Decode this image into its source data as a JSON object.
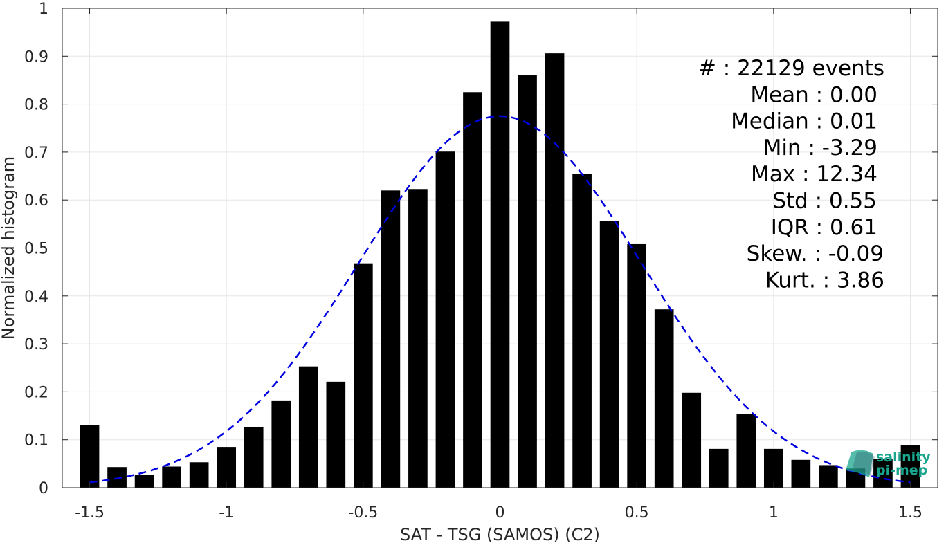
{
  "chart_data": {
    "type": "bar",
    "xlabel": "SAT - TSG (SAMOS) (C2)",
    "ylabel": "Normalized histogram",
    "xlim": [
      -1.6,
      1.6
    ],
    "ylim": [
      0,
      1
    ],
    "grid": true,
    "x_ticks": [
      -1.5,
      -1,
      -0.5,
      0,
      0.5,
      1,
      1.5
    ],
    "x_tick_labels": [
      "-1.5",
      "-1",
      "-0.5",
      "0",
      "0.5",
      "1",
      "1.5"
    ],
    "y_ticks": [
      0,
      0.1,
      0.2,
      0.3,
      0.4,
      0.5,
      0.6,
      0.7,
      0.8,
      0.9,
      1
    ],
    "y_tick_labels": [
      "0",
      "0.1",
      "0.2",
      "0.3",
      "0.4",
      "0.5",
      "0.6",
      "0.7",
      "0.8",
      "0.9",
      "1"
    ],
    "bin_width": 0.1,
    "x": [
      -1.5,
      -1.4,
      -1.3,
      -1.2,
      -1.1,
      -1.0,
      -0.9,
      -0.8,
      -0.7,
      -0.6,
      -0.5,
      -0.4,
      -0.3,
      -0.2,
      -0.1,
      0.0,
      0.1,
      0.2,
      0.3,
      0.4,
      0.5,
      0.6,
      0.7,
      0.8,
      0.9,
      1.0,
      1.1,
      1.2,
      1.3,
      1.4,
      1.5
    ],
    "values": [
      0.13,
      0.043,
      0.027,
      0.044,
      0.053,
      0.085,
      0.127,
      0.182,
      0.253,
      0.221,
      0.468,
      0.62,
      0.623,
      0.701,
      0.825,
      0.972,
      0.86,
      0.906,
      0.655,
      0.557,
      0.508,
      0.372,
      0.198,
      0.081,
      0.153,
      0.081,
      0.058,
      0.047,
      0.04,
      0.06,
      0.088
    ],
    "bar_color": "#000000",
    "fit_curve": {
      "style": "dashed",
      "color": "#0000e0",
      "mean": 0.0,
      "std": 0.515,
      "peak": 0.775,
      "x_range": [
        -1.5,
        1.5
      ]
    }
  },
  "stats": [
    "#  : 22129 events",
    "Mean : 0.00",
    "Median : 0.01",
    "Min : -3.29",
    "Max : 12.34",
    "Std : 0.55",
    "IQR : 0.61",
    "Skew. : -0.09",
    "Kurt. : 3.86"
  ],
  "logo": {
    "line1": "salinity",
    "line2": "pi-mep",
    "color_primary": "#1aa58e",
    "color_secondary": "#2e5c6b"
  }
}
